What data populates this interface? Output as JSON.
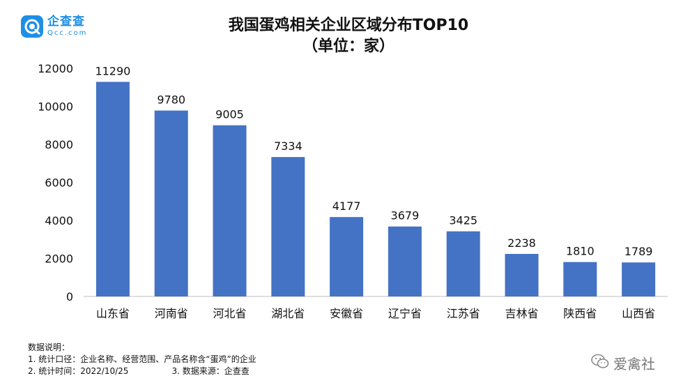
{
  "logo": {
    "cn": "企查查",
    "en": "Qcc.com",
    "icon": "qcc-logo-icon"
  },
  "title": "我国蛋鸡相关企业区域分布TOP10",
  "subtitle": "（单位：家）",
  "chart_data": {
    "type": "bar",
    "title": "我国蛋鸡相关企业区域分布TOP10",
    "subtitle": "（单位：家）",
    "categories": [
      "山东省",
      "河南省",
      "河北省",
      "湖北省",
      "安徽省",
      "辽宁省",
      "江苏省",
      "吉林省",
      "陕西省",
      "山西省"
    ],
    "values": [
      11290,
      9780,
      9005,
      7334,
      4177,
      3679,
      3425,
      2238,
      1810,
      1789
    ],
    "ylim": [
      0,
      12000
    ],
    "yticks": [
      0,
      2000,
      4000,
      6000,
      8000,
      10000,
      12000
    ],
    "bar_color": "#4472c4",
    "grid": false,
    "data_labels": true
  },
  "notes": {
    "heading": "数据说明：",
    "line1": "1. 统计口径：企业名称、经营范围、产品名称含“蛋鸡”的企业",
    "line2a": "2. 统计时间：2022/10/25",
    "line2b": "3. 数据来源：企查查"
  },
  "watermark": {
    "text": "爱禽社",
    "icon": "wechat-icon"
  }
}
